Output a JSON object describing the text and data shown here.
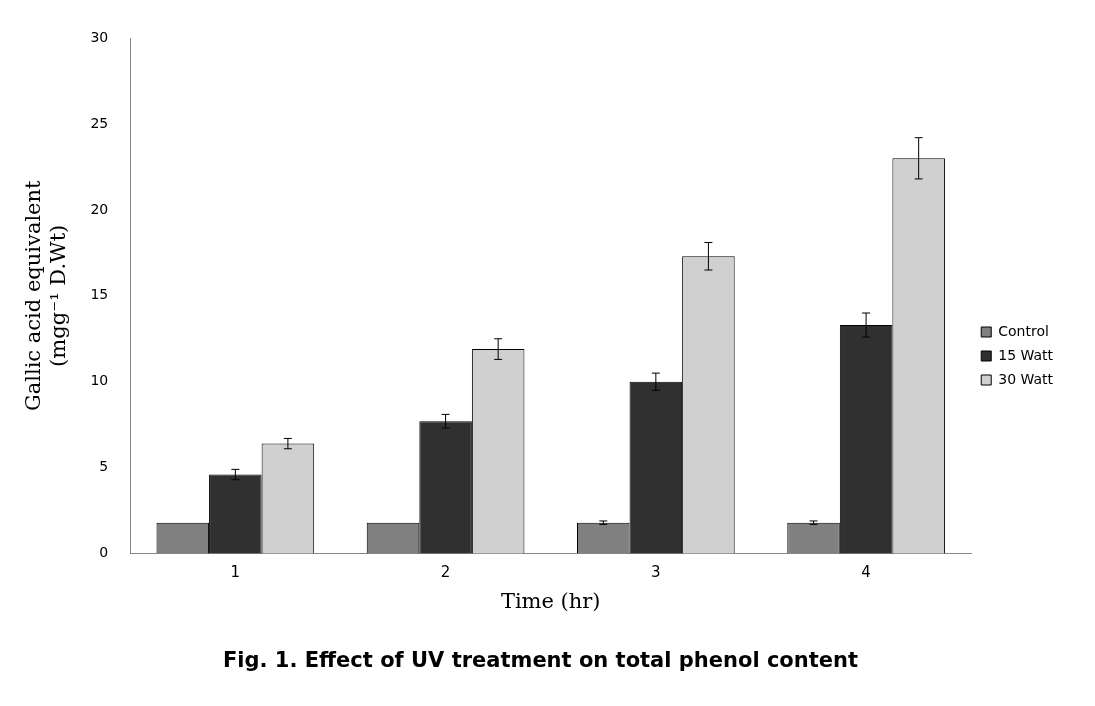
{
  "chart_data": {
    "type": "bar",
    "title": "Fig. 1. Effect of UV treatment on total phenol content",
    "xlabel": "Time (hr)",
    "ylabel": "Gallic acid equivalent (mgg⁻¹ D.Wt)",
    "categories": [
      "1",
      "2",
      "3",
      "4"
    ],
    "series": [
      {
        "name": "Control",
        "color": "#808080",
        "values": [
          1.8,
          1.8,
          1.8,
          1.8
        ],
        "errors": [
          null,
          null,
          0.1,
          0.1
        ]
      },
      {
        "name": "15 Watt",
        "color": "#303030",
        "values": [
          4.6,
          7.7,
          10.0,
          13.3
        ],
        "errors": [
          0.3,
          0.4,
          0.5,
          0.7
        ]
      },
      {
        "name": "30 Watt",
        "color": "#d0d0d0",
        "values": [
          6.4,
          11.9,
          17.3,
          23.0
        ],
        "errors": [
          0.3,
          0.6,
          0.8,
          1.2
        ]
      }
    ],
    "ylim": [
      0,
      30
    ],
    "yticks": [
      0,
      5,
      10,
      15,
      20,
      25,
      30
    ],
    "grid": false,
    "legend": "right"
  }
}
